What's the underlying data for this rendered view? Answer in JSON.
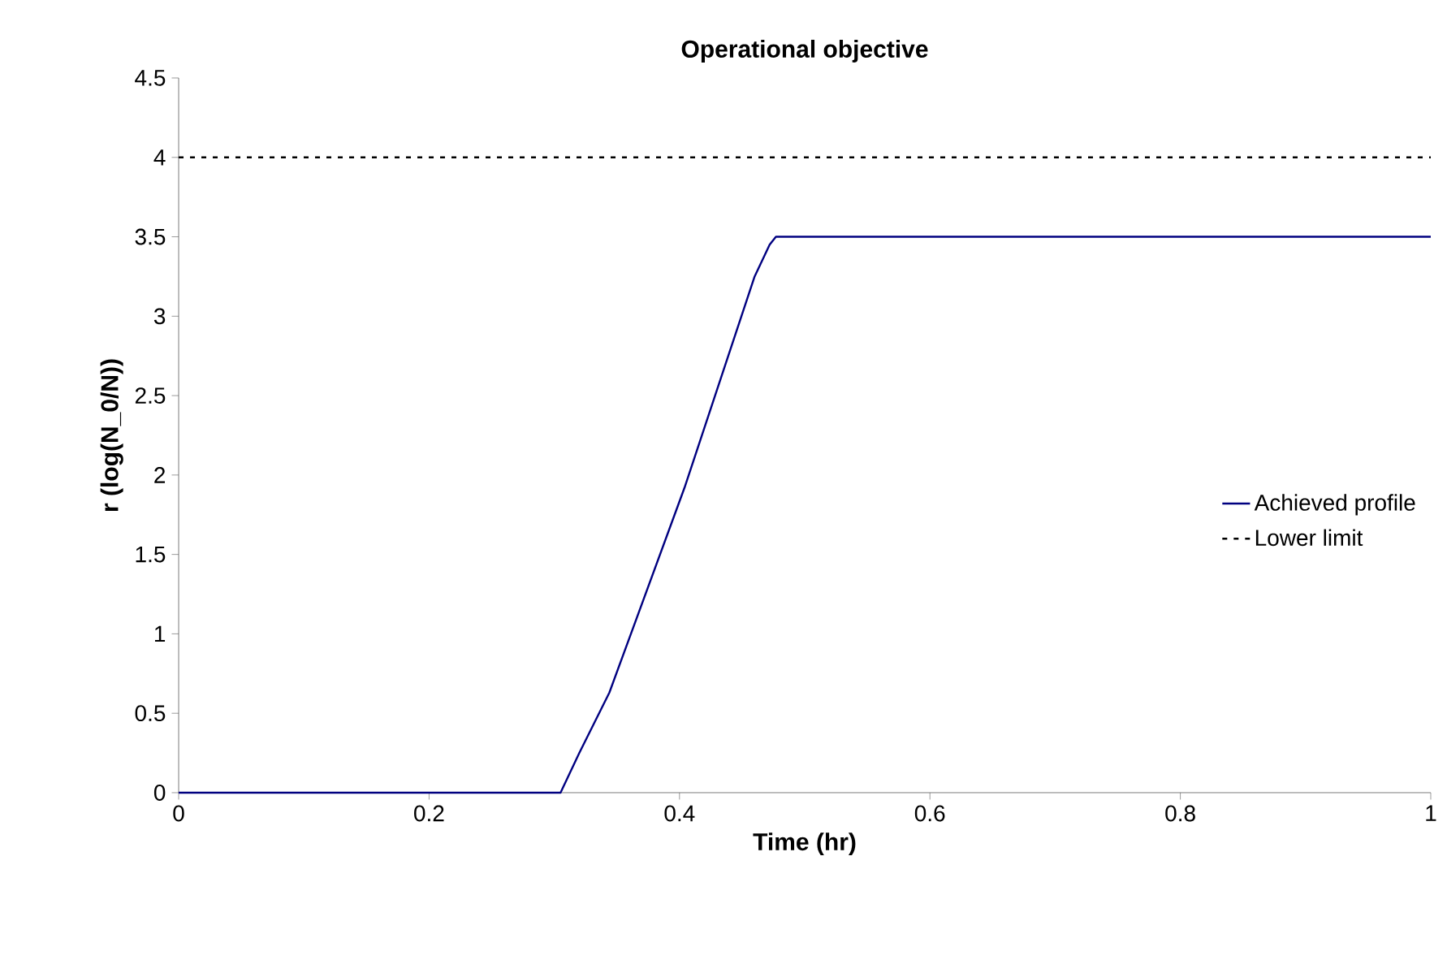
{
  "chart_data": {
    "type": "line",
    "title": "Operational objective",
    "xlabel": "Time (hr)",
    "ylabel": "r (log(N_0/N))",
    "xlim": [
      0,
      1
    ],
    "xticks": [
      0,
      0.2,
      0.4,
      0.6,
      0.8,
      1
    ],
    "ylim": [
      0,
      4.5
    ],
    "yticks": [
      0,
      0.5,
      1,
      1.5,
      2,
      2.5,
      3,
      3.5,
      4,
      4.5
    ],
    "legend": "right",
    "grid": false,
    "series": [
      {
        "name": "Achieved profile",
        "color": "#000080",
        "line_style": "solid",
        "x": [
          0,
          0.305,
          0.32,
          0.344,
          0.404,
          0.46,
          0.472,
          0.477,
          1
        ],
        "values": [
          0,
          0,
          0.25,
          0.63,
          1.92,
          3.25,
          3.45,
          3.5,
          3.5
        ]
      },
      {
        "name": "Lower limit",
        "color": "#000000",
        "line_style": "dashed",
        "x": [
          0,
          1
        ],
        "values": [
          4,
          4
        ]
      }
    ]
  }
}
